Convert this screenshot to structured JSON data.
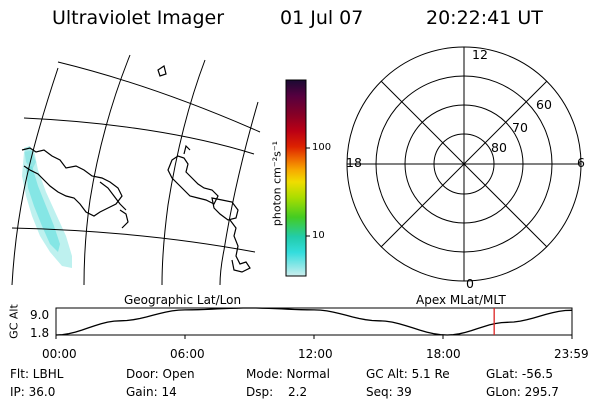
{
  "header": {
    "instrument": "Ultraviolet Imager",
    "date": "01 Jul 07",
    "time": "20:22:41 UT"
  },
  "colorbar": {
    "unit_label": "photon cm⁻²s⁻¹",
    "tick_labels": [
      "100",
      "10"
    ],
    "colors": [
      "#1a0a33",
      "#55003f",
      "#880025",
      "#bb0015",
      "#dd2200",
      "#ee6600",
      "#f7aa00",
      "#f0dd00",
      "#aadd00",
      "#44cc22",
      "#22ccaa",
      "#33dddd",
      "#cceeee"
    ]
  },
  "geo_map": {
    "label": "Geographic Lat/Lon"
  },
  "polar_plot": {
    "label": "Apex MLat/MLT",
    "mlt_labels": {
      "top": "12",
      "left": "18",
      "right": "6",
      "bottom": "0"
    },
    "lat_labels": [
      "60",
      "70",
      "80"
    ]
  },
  "altitude_plot": {
    "ylabel": "GC Alt",
    "ytick_labels": [
      "9.0",
      "1.8"
    ],
    "xtick_labels": [
      "00:00",
      "06:00",
      "12:00",
      "18:00",
      "23:59"
    ],
    "marker_color": "#dd2222"
  },
  "chart_data": {
    "type": "line",
    "title": "",
    "xlabel": "",
    "ylabel": "GC Alt",
    "x": [
      0,
      3,
      6,
      9,
      12,
      15,
      18.2,
      21,
      23.98
    ],
    "values": [
      1.8,
      5.6,
      8.5,
      9.0,
      8.5,
      5.6,
      1.8,
      5.2,
      8.4
    ],
    "ylim": [
      1.8,
      9.0
    ],
    "xlim": [
      0,
      24
    ],
    "current_time_marker": 20.38
  },
  "status": {
    "filter": "Flt: LBHL",
    "door": "Door: Open",
    "mode": "Mode: Normal",
    "gc_alt": "GC Alt: 5.1 Re",
    "glat": "GLat: -56.5",
    "ip": "IP: 36.0",
    "gain": "Gain: 14",
    "dsp_label": "Dsp:",
    "dsp_value": "2.2",
    "seq": "Seq: 39",
    "glon": "GLon: 295.7"
  }
}
